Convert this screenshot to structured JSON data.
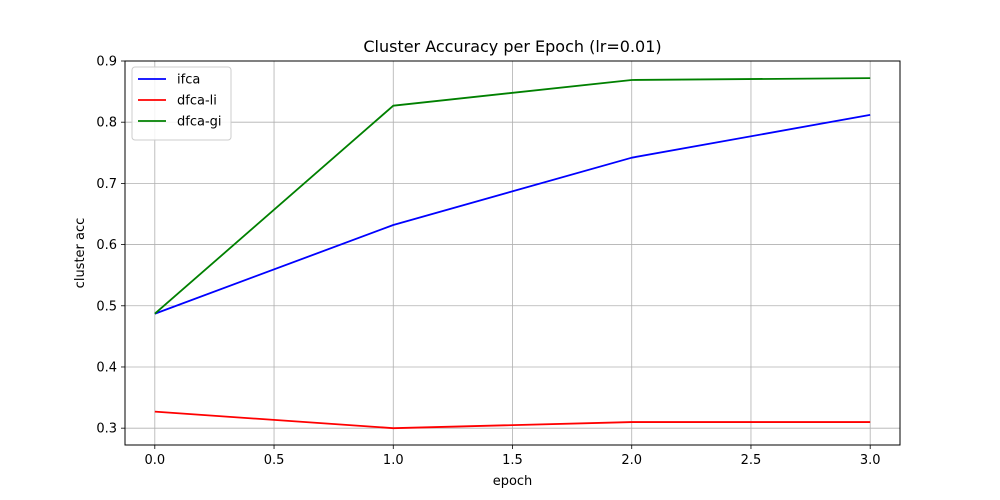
{
  "chart_data": {
    "type": "line",
    "title": "Cluster Accuracy per Epoch (lr=0.01)",
    "xlabel": "epoch",
    "ylabel": "cluster acc",
    "xlim": [
      -0.125,
      3.125
    ],
    "ylim": [
      0.2725,
      0.9
    ],
    "xticks": [
      0.0,
      0.5,
      1.0,
      1.5,
      2.0,
      2.5,
      3.0
    ],
    "xtick_labels": [
      "0.0",
      "0.5",
      "1.0",
      "1.5",
      "2.0",
      "2.5",
      "3.0"
    ],
    "yticks": [
      0.3,
      0.4,
      0.5,
      0.6,
      0.7,
      0.8,
      0.9
    ],
    "ytick_labels": [
      "0.3",
      "0.4",
      "0.5",
      "0.6",
      "0.7",
      "0.8",
      "0.9"
    ],
    "grid": true,
    "legend_position": "top-left",
    "x": [
      0,
      1,
      2,
      3
    ],
    "series": [
      {
        "name": "ifca",
        "color": "#0000ff",
        "values": [
          0.487,
          0.632,
          0.742,
          0.812
        ]
      },
      {
        "name": "dfca-li",
        "color": "#ff0000",
        "values": [
          0.327,
          0.3,
          0.31,
          0.31
        ]
      },
      {
        "name": "dfca-gi",
        "color": "#008000",
        "values": [
          0.487,
          0.827,
          0.869,
          0.872
        ]
      }
    ]
  }
}
